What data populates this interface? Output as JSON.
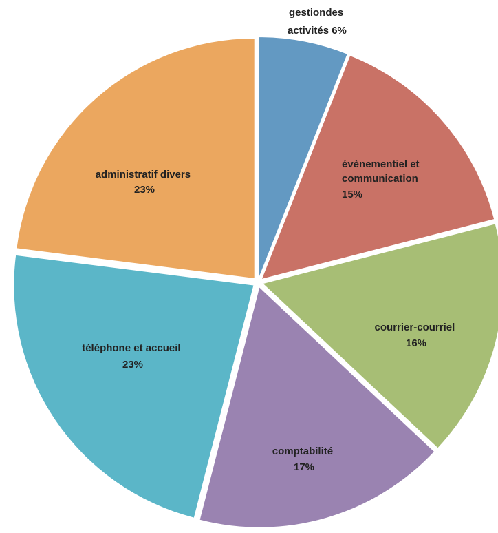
{
  "chart_data": {
    "type": "pie",
    "title": "",
    "slices": [
      {
        "label": "gestiondes activités",
        "label_lines": [
          "gestiondes",
          "activités 6%"
        ],
        "value": 6,
        "color": "#6399c2"
      },
      {
        "label": "évènementiel et communication",
        "label_lines": [
          "évènementiel et",
          "communication",
          "15%"
        ],
        "value": 15,
        "color": "#c97266"
      },
      {
        "label": "courrier-courriel",
        "label_lines": [
          "courrier-courriel",
          "16%"
        ],
        "value": 16,
        "color": "#a7be75"
      },
      {
        "label": "comptabilité",
        "label_lines": [
          "comptabilité",
          "17%"
        ],
        "value": 17,
        "color": "#9a83b1"
      },
      {
        "label": "téléphone et accueil",
        "label_lines": [
          "téléphone et accueil",
          "23%"
        ],
        "value": 23,
        "color": "#5bb6c8"
      },
      {
        "label": "administratif divers",
        "label_lines": [
          "administratif divers",
          "23%"
        ],
        "value": 23,
        "color": "#eba75f"
      }
    ],
    "start": "12 o'clock",
    "direction": "clockwise",
    "legend": "none",
    "exploded": true
  }
}
